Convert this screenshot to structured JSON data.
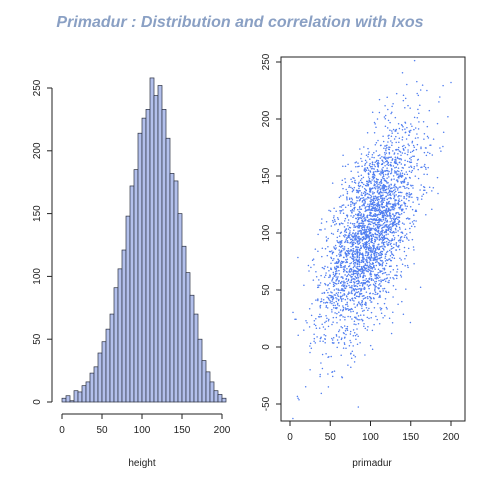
{
  "title": "Primadur : Distribution and correlation with Ixos",
  "colors": {
    "bar_fill": "#b3c0ec",
    "bar_stroke": "#2a2f3f",
    "point": "#4f7df0",
    "title": "#8aa0c4"
  },
  "chart_data": [
    {
      "type": "bar",
      "subtype": "histogram",
      "xlabel": "height",
      "ylabel": "",
      "xlim": [
        0,
        200
      ],
      "ylim": [
        0,
        260
      ],
      "x_ticks": [
        0,
        50,
        100,
        150,
        200
      ],
      "y_ticks": [
        0,
        50,
        100,
        150,
        200,
        250
      ],
      "bin_width": 5,
      "bin_start": 0,
      "values": [
        3,
        5,
        1,
        9,
        8,
        13,
        16,
        23,
        28,
        39,
        48,
        58,
        70,
        91,
        106,
        121,
        148,
        172,
        185,
        214,
        226,
        233,
        258,
        244,
        252,
        233,
        210,
        182,
        176,
        150,
        124,
        103,
        85,
        70,
        50,
        33,
        24,
        16,
        9,
        6,
        3
      ],
      "grid": false
    },
    {
      "type": "scatter",
      "xlabel": "primadur",
      "ylabel": "",
      "xlim": [
        -5,
        207
      ],
      "ylim": [
        -60,
        258
      ],
      "x_ticks": [
        0,
        50,
        100,
        150,
        200
      ],
      "y_ticks": [
        -50,
        0,
        50,
        100,
        150,
        200,
        250
      ],
      "grid": false,
      "series": [
        {
          "distribution": "bivariate normal",
          "n_points": 3000,
          "x_mean": 100,
          "x_sd": 30,
          "y_mean": 100,
          "y_sd": 45,
          "correlation": 0.6,
          "sample": [
            [
              10,
              -45
            ],
            [
              25,
              -20
            ],
            [
              30,
              5
            ],
            [
              40,
              20
            ],
            [
              45,
              35
            ],
            [
              55,
              50
            ],
            [
              60,
              70
            ],
            [
              70,
              60
            ],
            [
              75,
              85
            ],
            [
              85,
              95
            ],
            [
              90,
              110
            ],
            [
              95,
              75
            ],
            [
              100,
              100
            ],
            [
              105,
              130
            ],
            [
              110,
              120
            ],
            [
              115,
              95
            ],
            [
              120,
              145
            ],
            [
              125,
              160
            ],
            [
              135,
              175
            ],
            [
              140,
              150
            ],
            [
              150,
              190
            ],
            [
              160,
              205
            ],
            [
              170,
              225
            ],
            [
              185,
              215
            ],
            [
              200,
              232
            ]
          ]
        }
      ]
    }
  ]
}
